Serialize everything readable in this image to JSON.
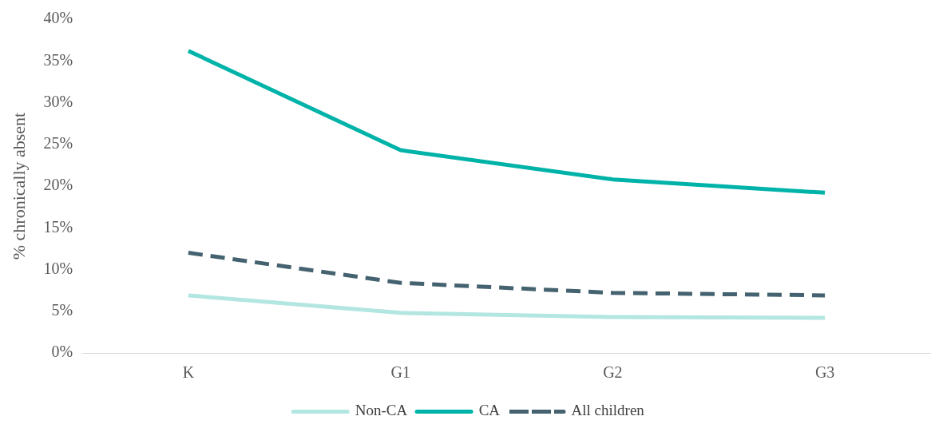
{
  "chart_data": {
    "type": "line",
    "ylabel": "% chronically absent",
    "categories": [
      "K",
      "G1",
      "G2",
      "G3"
    ],
    "series": [
      {
        "name": "Non-CA",
        "color": "#b3e6e1",
        "values": [
          6.9,
          4.8,
          4.3,
          4.2
        ]
      },
      {
        "name": "CA",
        "color": "#00b3a9",
        "values": [
          36.2,
          24.3,
          20.8,
          19.2
        ]
      },
      {
        "name": "All children",
        "color": "#44626f",
        "values": [
          12.0,
          8.4,
          7.2,
          6.9
        ],
        "line_style": "dashed"
      }
    ],
    "ylim": [
      0,
      40
    ],
    "yticks": [
      {
        "value": 0,
        "label": "0%"
      },
      {
        "value": 5,
        "label": "5%"
      },
      {
        "value": 10,
        "label": "10%"
      },
      {
        "value": 15,
        "label": "15%"
      },
      {
        "value": 20,
        "label": "20%"
      },
      {
        "value": 25,
        "label": "25%"
      },
      {
        "value": 30,
        "label": "30%"
      },
      {
        "value": 35,
        "label": "35%"
      },
      {
        "value": 40,
        "label": "40%"
      }
    ],
    "grid": false,
    "legend": "bottom",
    "marker": "none",
    "line_style": "solid"
  }
}
